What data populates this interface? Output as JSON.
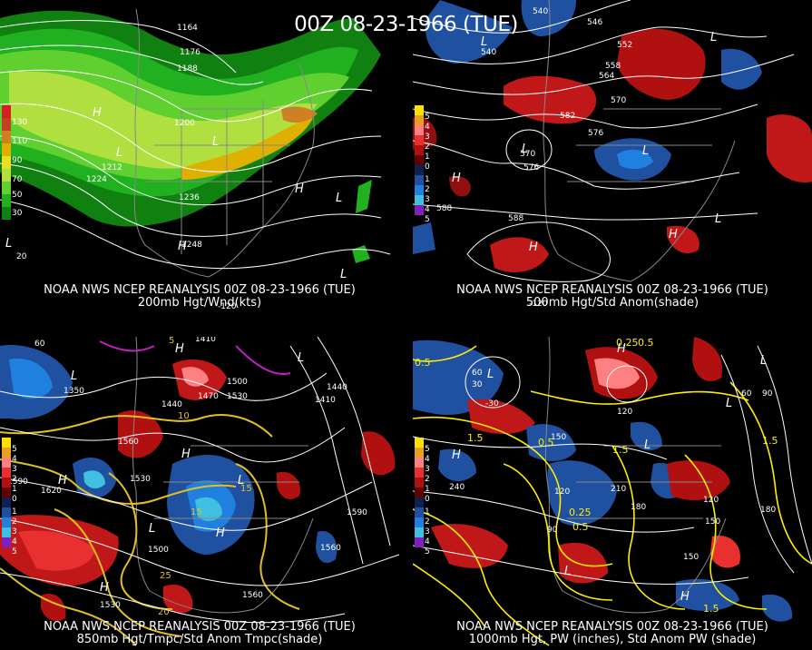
{
  "main_title": "00Z 08-23-1966 (TUE)",
  "panels": [
    {
      "id": "p200",
      "caption1": "NOAA NWS NCEP REANALYSIS 00Z 08-23-1966 (TUE)",
      "caption2": "200mb Hgt/Wnd(kts)",
      "scale_labels": [
        "130",
        "110",
        "90",
        "70",
        "50",
        "30"
      ],
      "scale_colors": [
        "#d42020",
        "#c04020",
        "#d08020",
        "#e0b000",
        "#e8e020",
        "#b0e040",
        "#60d030",
        "#20b020",
        "#108010"
      ],
      "contour_labels": [
        "1164",
        "1176",
        "1188",
        "1200",
        "1212",
        "1224",
        "1236",
        "1248",
        "1212",
        "1248"
      ],
      "hl_labels": [
        "H",
        "L",
        "L",
        "L",
        "H",
        "L",
        "H",
        "L"
      ],
      "lat_labels": [
        "20"
      ],
      "lon_labels": [
        "-120"
      ]
    },
    {
      "id": "p500",
      "caption1": "NOAA NWS NCEP REANALYSIS 00Z 08-23-1966 (TUE)",
      "caption2": "500mb Hgt/Std Anom(shade)",
      "scale_labels": [
        "5",
        "4",
        "3",
        "2",
        "1",
        "0",
        "1",
        "2",
        "3",
        "4",
        "5"
      ],
      "scale_colors": [
        "#ffe000",
        "#e8a020",
        "#ff8080",
        "#e83030",
        "#b01010",
        "#600000",
        "#102050",
        "#2050a0",
        "#2080e0",
        "#40c0e0",
        "#8020c0"
      ],
      "contour_labels": [
        "540",
        "546",
        "540",
        "552",
        "558",
        "564",
        "570",
        "582",
        "576",
        "570",
        "576",
        "588",
        "588"
      ],
      "hl_labels": [
        "L",
        "L",
        "L",
        "H",
        "H",
        "L",
        "H",
        "L"
      ],
      "lat_labels": [],
      "lon_labels": [
        "-120"
      ]
    },
    {
      "id": "p850",
      "caption1": "NOAA NWS NCEP REANALYSIS 00Z 08-23-1966 (TUE)",
      "caption2": "850mb Hgt/Tmpc/Std Anom Tmpc(shade)",
      "scale_labels": [
        "5",
        "4",
        "3",
        "2",
        "1",
        "0",
        "1",
        "2",
        "3",
        "4",
        "5"
      ],
      "scale_colors": [
        "#ffe000",
        "#e8a020",
        "#ff8080",
        "#e83030",
        "#b01010",
        "#600000",
        "#102050",
        "#2050a0",
        "#2080e0",
        "#40c0e0",
        "#8020c0"
      ],
      "contour_labels": [
        "1410",
        "1440",
        "1350",
        "1410",
        "1500",
        "1470",
        "1530",
        "1440",
        "1560",
        "1530",
        "1620",
        "1500",
        "1590",
        "1560",
        "1530",
        "1560",
        "1590"
      ],
      "temp_labels": [
        "5",
        "10",
        "15",
        "15",
        "25",
        "20"
      ],
      "hl_labels": [
        "H",
        "L",
        "L",
        "H",
        "H",
        "L",
        "H",
        "H",
        "L"
      ],
      "lat_labels": [
        "60"
      ],
      "lon_labels": []
    },
    {
      "id": "p1000",
      "caption1": "NOAA NWS NCEP REANALYSIS 00Z 08-23-1966 (TUE)",
      "caption2": "1000mb Hgt, PW (inches), Std Anom PW (shade)",
      "scale_labels": [
        "5",
        "4",
        "3",
        "2",
        "1",
        "0",
        "1",
        "2",
        "3",
        "4",
        "5"
      ],
      "scale_colors": [
        "#ffe000",
        "#e8a020",
        "#ff8080",
        "#e83030",
        "#b01010",
        "#600000",
        "#102050",
        "#2050a0",
        "#2080e0",
        "#40c0e0",
        "#8020c0"
      ],
      "contour_labels": [
        "30",
        "-30",
        "120",
        "150",
        "240",
        "120",
        "210",
        "180",
        "150",
        "90",
        "60",
        "120",
        "150",
        "180",
        "90",
        "60"
      ],
      "pw_labels": [
        "0.5",
        "0.25",
        "1.5",
        "0.5",
        "1.5",
        "0.25",
        "0.5",
        "1.5",
        "0.5",
        "1.5"
      ],
      "hl_labels": [
        "L",
        "H",
        "H",
        "L",
        "L",
        "L",
        "L",
        "H"
      ],
      "lat_labels": [],
      "lon_labels": []
    }
  ]
}
